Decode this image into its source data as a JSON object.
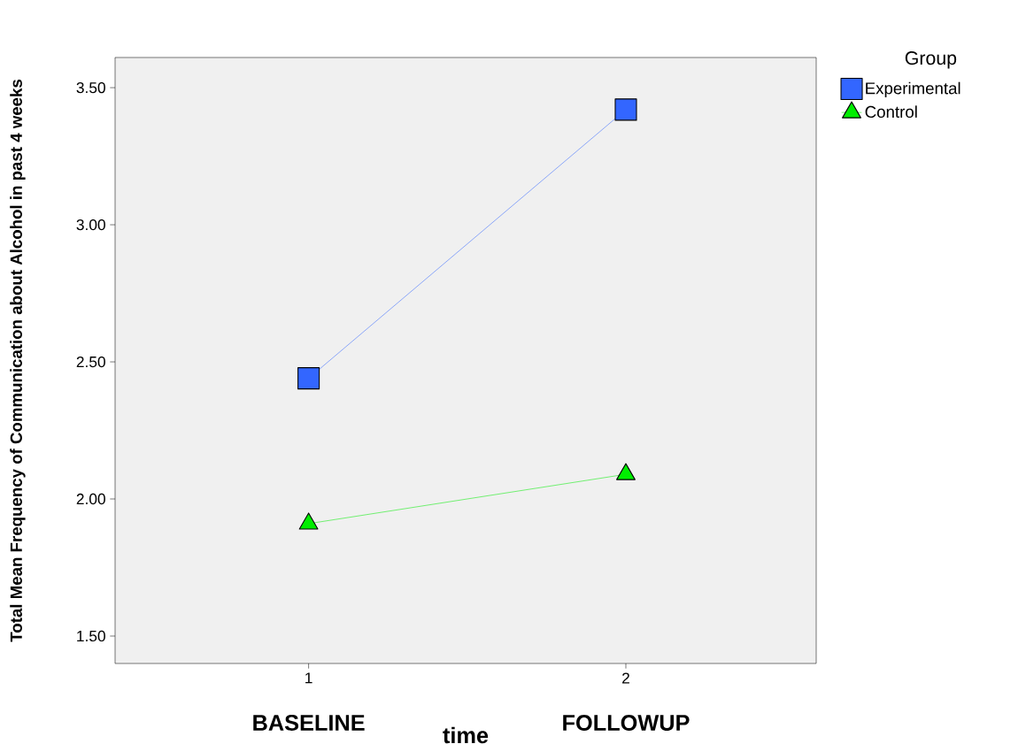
{
  "chart_data": {
    "type": "line",
    "xlabel": "time",
    "ylabel": "Total Mean Frequency of Communication about Alcohol in past 4 weeks",
    "legend_title": "Group",
    "x": [
      1,
      2
    ],
    "series": [
      {
        "name": "Experimental",
        "color": "#3366ff",
        "marker": "square",
        "values": [
          2.44,
          3.42
        ]
      },
      {
        "name": "Control",
        "color": "#00ee00",
        "marker": "triangle",
        "values": [
          1.91,
          2.09
        ]
      }
    ],
    "xlim": [
      0.39,
      2.6
    ],
    "ylim": [
      1.4,
      3.61
    ],
    "xticks": [
      1,
      2
    ],
    "yticks": [
      {
        "value": 1.5,
        "label": "1.50"
      },
      {
        "value": 2.0,
        "label": "2.00"
      },
      {
        "value": 2.5,
        "label": "2.50"
      },
      {
        "value": 3.0,
        "label": "3.00"
      },
      {
        "value": 3.5,
        "label": "3.50"
      }
    ],
    "annotations": [
      "BASELINE",
      "FOLLOWUP"
    ],
    "legend": "right",
    "grid": false,
    "line_style": "solid"
  }
}
